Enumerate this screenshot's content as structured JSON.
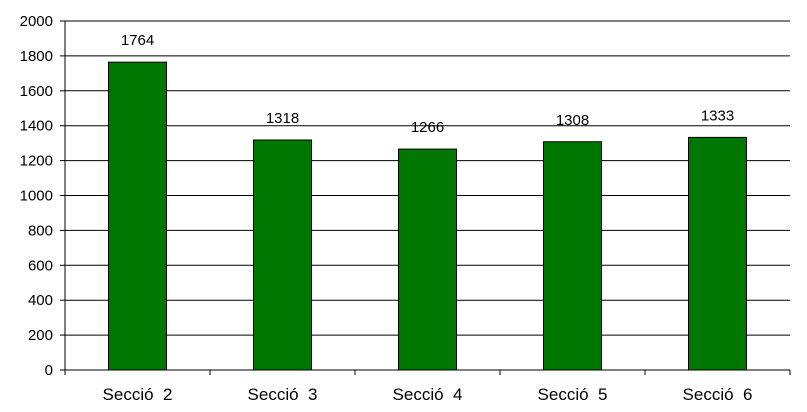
{
  "chart_data": {
    "type": "bar",
    "categories": [
      "Secció  2",
      "Secció  3",
      "Secció  4",
      "Secció  5",
      "Secció  6"
    ],
    "values": [
      1764,
      1318,
      1266,
      1308,
      1333
    ],
    "title": "",
    "xlabel": "",
    "ylabel": "",
    "ylim": [
      0,
      2000
    ],
    "yticks": [
      0,
      200,
      400,
      600,
      800,
      1000,
      1200,
      1400,
      1600,
      1800,
      2000
    ],
    "grid": true,
    "legend": "none",
    "bar_color": "#007700",
    "bar_edge_color": "#000000",
    "gridline_color": "#000000"
  }
}
